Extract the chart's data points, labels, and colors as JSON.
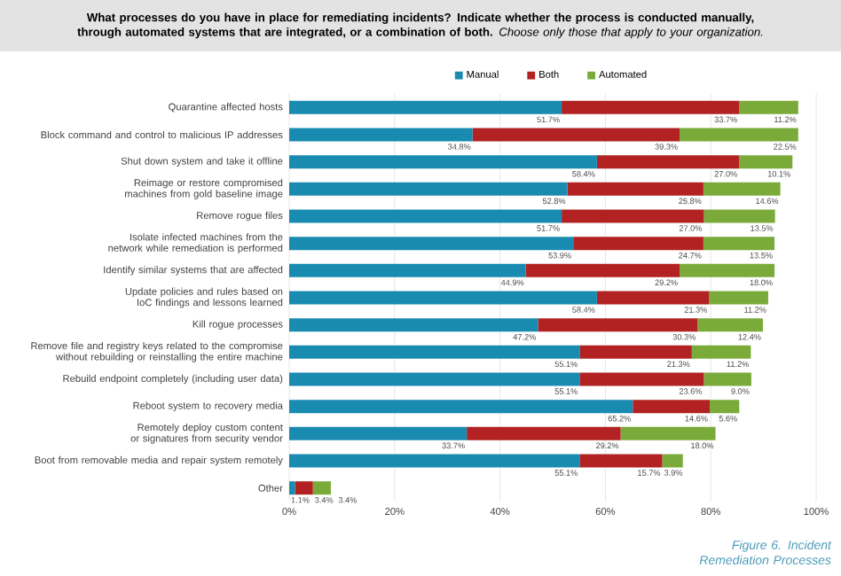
{
  "chart_data": {
    "type": "bar",
    "orientation": "horizontal",
    "stacked": true,
    "title": "**What processes do you have in place for remediating incidents? Indicate whether the process is conducted manually, through automated systems that are integrated, or a combination of both.** *Choose only those that apply to your organization.*",
    "categories": [
      "Quarantine affected hosts",
      "Block command and control to malicious IP addresses",
      "Shut down system and take it offline",
      "Reimage or restore compromised machines from gold baseline image",
      "Remove rogue files",
      "Isolate infected machines from the network while remediation is performed",
      "Identify similar systems that are affected",
      "Update policies and rules based on IoC findings and lessons learned",
      "Kill rogue processes",
      "Remove file and registry keys related to the compromise without rebuilding or reinstalling the entire machine",
      "Rebuild endpoint completely (including user data)",
      "Reboot system to recovery media",
      "Remotely deploy custom content or signatures from security vendor",
      "Boot from removable media and repair system remotely",
      "Other"
    ],
    "series": [
      {
        "name": "Manual",
        "color": "#1a8bb0",
        "values": [
          51.7,
          34.8,
          58.4,
          52.8,
          51.7,
          53.9,
          44.9,
          58.4,
          47.2,
          55.1,
          55.1,
          65.2,
          33.7,
          55.1,
          1.1
        ],
        "value_labels": [
          "51.7%",
          "34.8%",
          "58.4%",
          "52.8%",
          "51.7%",
          "53.9%",
          "44.9%",
          "58.4%",
          "47.2%",
          "55.1%",
          "55.1%",
          "65.2%",
          "33.7%",
          "55.1%",
          "1.1%"
        ]
      },
      {
        "name": "Both",
        "color": "#b22222",
        "values": [
          33.7,
          39.3,
          27.0,
          25.8,
          27.0,
          24.7,
          29.2,
          21.3,
          30.3,
          21.3,
          23.6,
          14.6,
          29.2,
          15.7,
          3.4
        ],
        "value_labels": [
          "33.7%",
          "39.3%",
          "27.0%",
          "25.8%",
          "27.0%",
          "24.7%",
          "29.2%",
          "21.3%",
          "30.3%",
          "21.3%",
          "23.6%",
          "14.6%",
          "29.2%",
          "15.7%",
          "3.4%"
        ]
      },
      {
        "name": "Automated",
        "color": "#7aab3a",
        "values": [
          11.2,
          22.5,
          10.1,
          14.6,
          13.5,
          13.5,
          18.0,
          11.2,
          12.4,
          11.2,
          9.0,
          5.6,
          18.0,
          3.9,
          3.4
        ],
        "value_labels": [
          "11.2%",
          "22.5%",
          "10.1%",
          "14.6%",
          "13.5%",
          "13.5%",
          "18.0%",
          "11.2%",
          "12.4%",
          "11.2%",
          "9.0%",
          "5.6%",
          "18.0%",
          "3.9%",
          "3.4%"
        ]
      }
    ],
    "xlim": [
      0,
      100
    ],
    "xticks": [
      {
        "value": 0,
        "label": "0%"
      },
      {
        "value": 20,
        "label": "20%"
      },
      {
        "value": 40,
        "label": "40%"
      },
      {
        "value": 60,
        "label": "60%"
      },
      {
        "value": 80,
        "label": "80%"
      },
      {
        "value": 100,
        "label": "100%"
      }
    ],
    "grid": "x",
    "legend": "top",
    "annotations": [
      "Figure 6. Incident Remediation Processes"
    ]
  }
}
